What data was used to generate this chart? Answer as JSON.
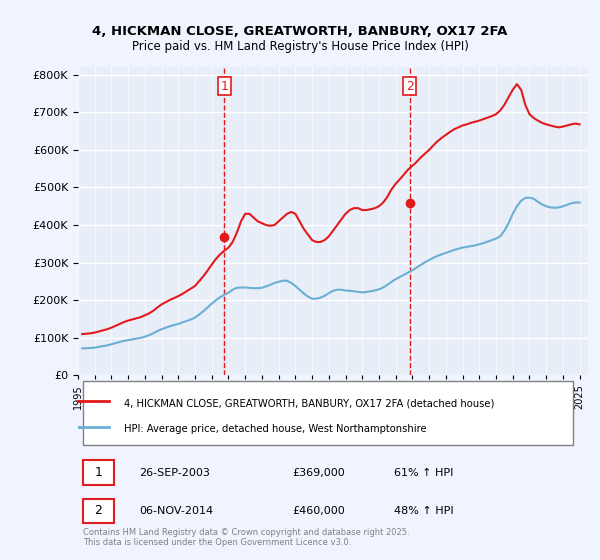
{
  "title_line1": "4, HICKMAN CLOSE, GREATWORTH, BANBURY, OX17 2FA",
  "title_line2": "Price paid vs. HM Land Registry's House Price Index (HPI)",
  "ylabel": "£",
  "yticks": [
    0,
    100000,
    200000,
    300000,
    400000,
    500000,
    600000,
    700000,
    800000
  ],
  "ytick_labels": [
    "£0",
    "£100K",
    "£200K",
    "£300K",
    "£400K",
    "£500K",
    "£600K",
    "£700K",
    "£800K"
  ],
  "xlim_start": 1995.0,
  "xlim_end": 2025.5,
  "ylim_min": 0,
  "ylim_max": 820000,
  "hpi_color": "#6baed6",
  "price_color": "#e31a1c",
  "sale1_x": 2003.74,
  "sale1_y": 369000,
  "sale2_x": 2014.85,
  "sale2_y": 460000,
  "legend_label1": "4, HICKMAN CLOSE, GREATWORTH, BANBURY, OX17 2FA (detached house)",
  "legend_label2": "HPI: Average price, detached house, West Northamptonshire",
  "table_rows": [
    {
      "num": "1",
      "date": "26-SEP-2003",
      "price": "£369,000",
      "pct": "61% ↑ HPI"
    },
    {
      "num": "2",
      "date": "06-NOV-2014",
      "price": "£460,000",
      "pct": "48% ↑ HPI"
    }
  ],
  "footnote": "Contains HM Land Registry data © Crown copyright and database right 2025.\nThis data is licensed under the Open Government Licence v3.0.",
  "bg_color": "#f0f4ff",
  "plot_bg_color": "#e8eef8",
  "grid_color": "#ffffff",
  "hpi_data_x": [
    1995.25,
    1995.5,
    1995.75,
    1996.0,
    1996.25,
    1996.5,
    1996.75,
    1997.0,
    1997.25,
    1997.5,
    1997.75,
    1998.0,
    1998.25,
    1998.5,
    1998.75,
    1999.0,
    1999.25,
    1999.5,
    1999.75,
    2000.0,
    2000.25,
    2000.5,
    2000.75,
    2001.0,
    2001.25,
    2001.5,
    2001.75,
    2002.0,
    2002.25,
    2002.5,
    2002.75,
    2003.0,
    2003.25,
    2003.5,
    2003.75,
    2004.0,
    2004.25,
    2004.5,
    2004.75,
    2005.0,
    2005.25,
    2005.5,
    2005.75,
    2006.0,
    2006.25,
    2006.5,
    2006.75,
    2007.0,
    2007.25,
    2007.5,
    2007.75,
    2008.0,
    2008.25,
    2008.5,
    2008.75,
    2009.0,
    2009.25,
    2009.5,
    2009.75,
    2010.0,
    2010.25,
    2010.5,
    2010.75,
    2011.0,
    2011.25,
    2011.5,
    2011.75,
    2012.0,
    2012.25,
    2012.5,
    2012.75,
    2013.0,
    2013.25,
    2013.5,
    2013.75,
    2014.0,
    2014.25,
    2014.5,
    2014.75,
    2015.0,
    2015.25,
    2015.5,
    2015.75,
    2016.0,
    2016.25,
    2016.5,
    2016.75,
    2017.0,
    2017.25,
    2017.5,
    2017.75,
    2018.0,
    2018.25,
    2018.5,
    2018.75,
    2019.0,
    2019.25,
    2019.5,
    2019.75,
    2020.0,
    2020.25,
    2020.5,
    2020.75,
    2021.0,
    2021.25,
    2021.5,
    2021.75,
    2022.0,
    2022.25,
    2022.5,
    2022.75,
    2023.0,
    2023.25,
    2023.5,
    2023.75,
    2024.0,
    2024.25,
    2024.5,
    2024.75,
    2025.0
  ],
  "hpi_data_y": [
    72000,
    72500,
    73000,
    74000,
    76000,
    78000,
    80000,
    83000,
    86000,
    89000,
    92000,
    94000,
    96000,
    98000,
    100000,
    103000,
    107000,
    112000,
    118000,
    123000,
    127000,
    131000,
    134000,
    137000,
    141000,
    145000,
    149000,
    154000,
    162000,
    171000,
    181000,
    191000,
    200000,
    208000,
    215000,
    220000,
    228000,
    233000,
    234000,
    234000,
    233000,
    232000,
    232000,
    233000,
    237000,
    241000,
    246000,
    249000,
    252000,
    252000,
    246000,
    238000,
    228000,
    218000,
    210000,
    204000,
    204000,
    207000,
    212000,
    219000,
    225000,
    228000,
    228000,
    226000,
    225000,
    224000,
    222000,
    221000,
    222000,
    224000,
    226000,
    229000,
    234000,
    241000,
    249000,
    256000,
    262000,
    268000,
    274000,
    280000,
    287000,
    294000,
    301000,
    307000,
    313000,
    318000,
    322000,
    326000,
    330000,
    334000,
    337000,
    340000,
    342000,
    344000,
    346000,
    349000,
    352000,
    356000,
    360000,
    364000,
    370000,
    385000,
    405000,
    430000,
    450000,
    465000,
    472000,
    473000,
    470000,
    462000,
    455000,
    450000,
    447000,
    446000,
    447000,
    450000,
    454000,
    458000,
    460000,
    460000
  ],
  "price_data_x": [
    1995.25,
    1995.5,
    1995.75,
    1996.0,
    1996.25,
    1996.5,
    1996.75,
    1997.0,
    1997.25,
    1997.5,
    1997.75,
    1998.0,
    1998.25,
    1998.5,
    1998.75,
    1999.0,
    1999.25,
    1999.5,
    1999.75,
    2000.0,
    2000.25,
    2000.5,
    2000.75,
    2001.0,
    2001.25,
    2001.5,
    2001.75,
    2002.0,
    2002.25,
    2002.5,
    2002.75,
    2003.0,
    2003.25,
    2003.5,
    2003.75,
    2004.0,
    2004.25,
    2004.5,
    2004.75,
    2005.0,
    2005.25,
    2005.5,
    2005.75,
    2006.0,
    2006.25,
    2006.5,
    2006.75,
    2007.0,
    2007.25,
    2007.5,
    2007.75,
    2008.0,
    2008.25,
    2008.5,
    2008.75,
    2009.0,
    2009.25,
    2009.5,
    2009.75,
    2010.0,
    2010.25,
    2010.5,
    2010.75,
    2011.0,
    2011.25,
    2011.5,
    2011.75,
    2012.0,
    2012.25,
    2012.5,
    2012.75,
    2013.0,
    2013.25,
    2013.5,
    2013.75,
    2014.0,
    2014.25,
    2014.5,
    2014.75,
    2015.0,
    2015.25,
    2015.5,
    2015.75,
    2016.0,
    2016.25,
    2016.5,
    2016.75,
    2017.0,
    2017.25,
    2017.5,
    2017.75,
    2018.0,
    2018.25,
    2018.5,
    2018.75,
    2019.0,
    2019.25,
    2019.5,
    2019.75,
    2020.0,
    2020.25,
    2020.5,
    2020.75,
    2021.0,
    2021.25,
    2021.5,
    2021.75,
    2022.0,
    2022.25,
    2022.5,
    2022.75,
    2023.0,
    2023.25,
    2023.5,
    2023.75,
    2024.0,
    2024.25,
    2024.5,
    2024.75,
    2025.0
  ],
  "price_data_y": [
    110000,
    111000,
    112000,
    114000,
    117000,
    120000,
    123000,
    127000,
    132000,
    137000,
    142000,
    146000,
    149000,
    152000,
    155000,
    160000,
    165000,
    172000,
    181000,
    189000,
    195000,
    201000,
    206000,
    211000,
    217000,
    224000,
    231000,
    238000,
    251000,
    264000,
    279000,
    295000,
    310000,
    322000,
    332000,
    340000,
    355000,
    380000,
    410000,
    430000,
    430000,
    420000,
    410000,
    405000,
    400000,
    398000,
    400000,
    410000,
    420000,
    430000,
    435000,
    430000,
    410000,
    390000,
    375000,
    360000,
    355000,
    355000,
    360000,
    370000,
    385000,
    400000,
    415000,
    430000,
    440000,
    445000,
    445000,
    440000,
    440000,
    442000,
    445000,
    450000,
    460000,
    475000,
    495000,
    510000,
    522000,
    535000,
    548000,
    558000,
    568000,
    580000,
    590000,
    600000,
    612000,
    623000,
    632000,
    640000,
    648000,
    655000,
    660000,
    665000,
    668000,
    672000,
    675000,
    678000,
    682000,
    686000,
    690000,
    695000,
    705000,
    720000,
    740000,
    760000,
    775000,
    760000,
    720000,
    695000,
    685000,
    678000,
    672000,
    668000,
    665000,
    662000,
    660000,
    662000,
    665000,
    668000,
    670000,
    668000
  ]
}
